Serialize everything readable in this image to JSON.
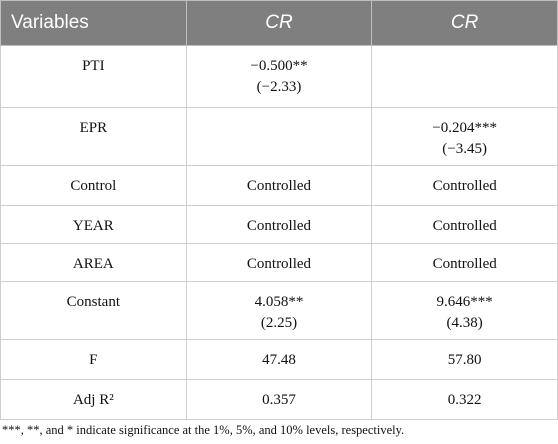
{
  "table": {
    "header": [
      "Variables",
      "CR",
      "CR"
    ],
    "rows": [
      [
        [
          "PTI"
        ],
        [
          "−0.500**",
          "(−2.33)"
        ],
        null
      ],
      [
        [
          "EPR"
        ],
        null,
        [
          "−0.204***",
          "(−3.45)"
        ]
      ],
      [
        [
          "Control"
        ],
        [
          "Controlled"
        ],
        [
          "Controlled"
        ]
      ],
      [
        [
          "YEAR"
        ],
        [
          "Controlled"
        ],
        [
          "Controlled"
        ]
      ],
      [
        [
          "AREA"
        ],
        [
          "Controlled"
        ],
        [
          "Controlled"
        ]
      ],
      [
        [
          "Constant"
        ],
        [
          "4.058**",
          "(2.25)"
        ],
        [
          "9.646***",
          "(4.38)"
        ]
      ],
      [
        [
          "F"
        ],
        [
          "47.48"
        ],
        [
          "57.80"
        ]
      ],
      [
        [
          "Adj R²"
        ],
        [
          "0.357"
        ],
        [
          "0.322"
        ]
      ]
    ],
    "footnote": "***, **, and * indicate significance at the 1%, 5%, and 10% levels, respectively."
  }
}
